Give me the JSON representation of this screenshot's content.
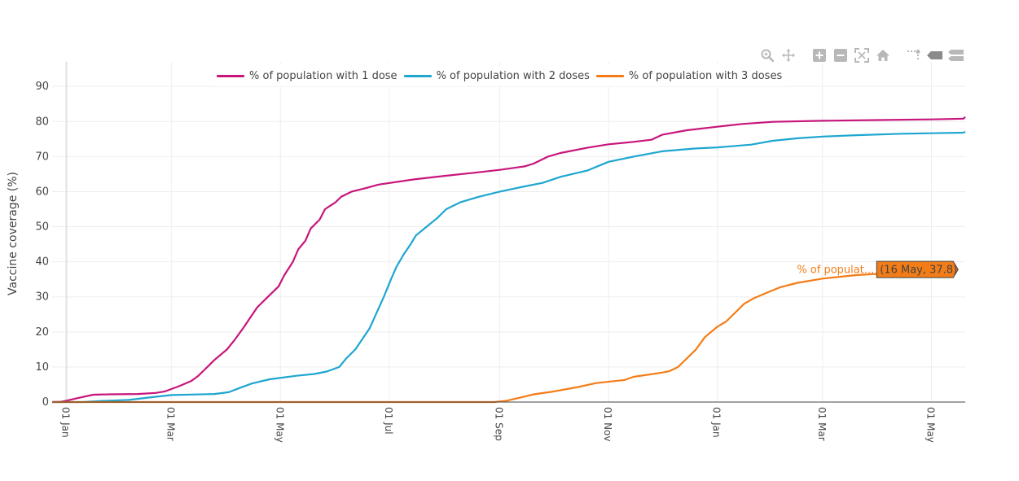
{
  "chart_data": {
    "type": "line",
    "ylabel": "Vaccine coverage (%)",
    "xlabel": "",
    "ylim": [
      0,
      97
    ],
    "xlim": [
      "2020-12-24",
      "2022-05-20"
    ],
    "yticks": [
      0,
      10,
      20,
      30,
      40,
      50,
      60,
      70,
      80,
      90
    ],
    "xticks": [
      {
        "date": "2021-01-01",
        "label": "01 Jan"
      },
      {
        "date": "2021-03-01",
        "label": "01 Mar"
      },
      {
        "date": "2021-05-01",
        "label": "01 May"
      },
      {
        "date": "2021-07-01",
        "label": "01 Jul"
      },
      {
        "date": "2021-09-01",
        "label": "01 Sep"
      },
      {
        "date": "2021-11-01",
        "label": "01 Nov"
      },
      {
        "date": "2022-01-01",
        "label": "01 Jan"
      },
      {
        "date": "2022-03-01",
        "label": "01 Mar"
      },
      {
        "date": "2022-05-01",
        "label": "01 May"
      }
    ],
    "grid": true,
    "legend_position": "top",
    "series": [
      {
        "name": "% of population with 1 dose",
        "color": "#c8157b",
        "points": [
          [
            "2020-12-24",
            0
          ],
          [
            "2020-12-29",
            0.1
          ],
          [
            "2021-01-01",
            0.4
          ],
          [
            "2021-01-08",
            1.2
          ],
          [
            "2021-01-16",
            2.1
          ],
          [
            "2021-01-25",
            2.2
          ],
          [
            "2021-02-10",
            2.3
          ],
          [
            "2021-02-20",
            2.6
          ],
          [
            "2021-02-25",
            3.0
          ],
          [
            "2021-03-05",
            4.5
          ],
          [
            "2021-03-12",
            6.0
          ],
          [
            "2021-03-16",
            7.5
          ],
          [
            "2021-03-20",
            9.5
          ],
          [
            "2021-03-25",
            12
          ],
          [
            "2021-04-01",
            15
          ],
          [
            "2021-04-05",
            17.5
          ],
          [
            "2021-04-10",
            21
          ],
          [
            "2021-04-14",
            24
          ],
          [
            "2021-04-18",
            27
          ],
          [
            "2021-04-24",
            30
          ],
          [
            "2021-04-30",
            33
          ],
          [
            "2021-05-03",
            36
          ],
          [
            "2021-05-08",
            40
          ],
          [
            "2021-05-11",
            43.5
          ],
          [
            "2021-05-15",
            46
          ],
          [
            "2021-05-18",
            49.5
          ],
          [
            "2021-05-23",
            52
          ],
          [
            "2021-05-26",
            55
          ],
          [
            "2021-06-01",
            57
          ],
          [
            "2021-06-04",
            58.5
          ],
          [
            "2021-06-10",
            60
          ],
          [
            "2021-06-18",
            61
          ],
          [
            "2021-06-25",
            62
          ],
          [
            "2021-07-15",
            63.5
          ],
          [
            "2021-08-01",
            64.5
          ],
          [
            "2021-08-20",
            65.5
          ],
          [
            "2021-09-01",
            66.2
          ],
          [
            "2021-09-15",
            67.2
          ],
          [
            "2021-09-20",
            68
          ],
          [
            "2021-09-28",
            70
          ],
          [
            "2021-10-05",
            71
          ],
          [
            "2021-10-20",
            72.5
          ],
          [
            "2021-11-01",
            73.5
          ],
          [
            "2021-11-15",
            74.2
          ],
          [
            "2021-11-25",
            74.8
          ],
          [
            "2021-12-01",
            76.2
          ],
          [
            "2021-12-15",
            77.5
          ],
          [
            "2022-01-01",
            78.5
          ],
          [
            "2022-01-15",
            79.3
          ],
          [
            "2022-02-01",
            79.9
          ],
          [
            "2022-03-01",
            80.2
          ],
          [
            "2022-04-01",
            80.4
          ],
          [
            "2022-05-01",
            80.6
          ],
          [
            "2022-05-19",
            80.8
          ],
          [
            "2022-05-20",
            81.3
          ]
        ]
      },
      {
        "name": "% of population with 2 doses",
        "color": "#1ea6d1",
        "points": [
          [
            "2020-12-24",
            0
          ],
          [
            "2021-01-10",
            0
          ],
          [
            "2021-01-20",
            0.3
          ],
          [
            "2021-02-05",
            0.6
          ],
          [
            "2021-02-20",
            1.5
          ],
          [
            "2021-03-01",
            2.0
          ],
          [
            "2021-03-25",
            2.3
          ],
          [
            "2021-04-02",
            2.8
          ],
          [
            "2021-04-08",
            4.0
          ],
          [
            "2021-04-15",
            5.3
          ],
          [
            "2021-04-25",
            6.5
          ],
          [
            "2021-05-10",
            7.5
          ],
          [
            "2021-05-20",
            8.0
          ],
          [
            "2021-05-27",
            8.7
          ],
          [
            "2021-06-03",
            10
          ],
          [
            "2021-06-07",
            12.5
          ],
          [
            "2021-06-12",
            15
          ],
          [
            "2021-06-16",
            18
          ],
          [
            "2021-06-20",
            21
          ],
          [
            "2021-06-24",
            25.5
          ],
          [
            "2021-06-28",
            30
          ],
          [
            "2021-07-02",
            35
          ],
          [
            "2021-07-05",
            38.5
          ],
          [
            "2021-07-09",
            42
          ],
          [
            "2021-07-13",
            45
          ],
          [
            "2021-07-16",
            47.5
          ],
          [
            "2021-07-22",
            50
          ],
          [
            "2021-07-28",
            52.5
          ],
          [
            "2021-08-02",
            55
          ],
          [
            "2021-08-10",
            57
          ],
          [
            "2021-08-20",
            58.5
          ],
          [
            "2021-09-01",
            60
          ],
          [
            "2021-09-15",
            61.5
          ],
          [
            "2021-09-25",
            62.5
          ],
          [
            "2021-10-05",
            64.2
          ],
          [
            "2021-10-20",
            66
          ],
          [
            "2021-11-01",
            68.5
          ],
          [
            "2021-11-15",
            70
          ],
          [
            "2021-12-01",
            71.5
          ],
          [
            "2021-12-20",
            72.3
          ],
          [
            "2022-01-01",
            72.6
          ],
          [
            "2022-01-20",
            73.4
          ],
          [
            "2022-02-01",
            74.5
          ],
          [
            "2022-02-15",
            75.2
          ],
          [
            "2022-03-01",
            75.7
          ],
          [
            "2022-03-20",
            76.1
          ],
          [
            "2022-04-15",
            76.5
          ],
          [
            "2022-05-19",
            76.8
          ],
          [
            "2022-05-20",
            77.1
          ]
        ]
      },
      {
        "name": "% of population with 3 doses",
        "color": "#f47c17",
        "points": [
          [
            "2020-12-24",
            0
          ],
          [
            "2021-08-29",
            0
          ],
          [
            "2021-09-05",
            0.4
          ],
          [
            "2021-09-12",
            1.2
          ],
          [
            "2021-09-20",
            2.2
          ],
          [
            "2021-10-01",
            3.0
          ],
          [
            "2021-10-15",
            4.3
          ],
          [
            "2021-10-25",
            5.4
          ],
          [
            "2021-11-10",
            6.3
          ],
          [
            "2021-11-15",
            7.2
          ],
          [
            "2021-12-01",
            8.4
          ],
          [
            "2021-12-05",
            8.8
          ],
          [
            "2021-12-10",
            10
          ],
          [
            "2021-12-15",
            12.5
          ],
          [
            "2021-12-20",
            15
          ],
          [
            "2021-12-25",
            18.5
          ],
          [
            "2022-01-01",
            21.5
          ],
          [
            "2022-01-06",
            23
          ],
          [
            "2022-01-11",
            25.5
          ],
          [
            "2022-01-16",
            28
          ],
          [
            "2022-01-21",
            29.5
          ],
          [
            "2022-01-28",
            31
          ],
          [
            "2022-02-05",
            32.7
          ],
          [
            "2022-02-15",
            34
          ],
          [
            "2022-03-01",
            35.2
          ],
          [
            "2022-03-20",
            36.2
          ],
          [
            "2022-04-15",
            37
          ],
          [
            "2022-05-16",
            37.8
          ]
        ]
      }
    ],
    "hover_label": {
      "series_name": "% of populat...",
      "text": "(16 May, 37.8)",
      "date": "2022-05-16",
      "value": 37.8,
      "fill_color": "#f47c17"
    }
  },
  "toolbar": {
    "buttons": [
      {
        "name": "zoom-icon",
        "title": "Zoom"
      },
      {
        "name": "pan-icon",
        "title": "Pan"
      },
      {
        "name": "zoom-in-icon",
        "title": "Zoom in"
      },
      {
        "name": "zoom-out-icon",
        "title": "Zoom out"
      },
      {
        "name": "autoscale-icon",
        "title": "Autoscale"
      },
      {
        "name": "reset-axes-icon",
        "title": "Reset axes"
      },
      {
        "name": "spike-lines-icon",
        "title": "Toggle Spike Lines"
      },
      {
        "name": "hover-closest-icon",
        "title": "Show closest data on hover"
      },
      {
        "name": "hover-compare-icon",
        "title": "Compare data on hover"
      }
    ]
  }
}
